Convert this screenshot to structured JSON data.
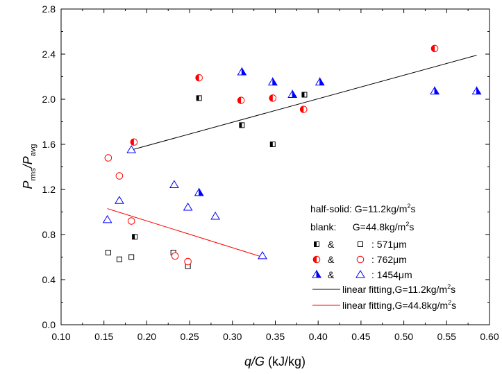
{
  "chart_data": {
    "type": "scatter",
    "xlim": [
      0.1,
      0.6
    ],
    "ylim": [
      0.0,
      2.8
    ],
    "x_ticks": [
      0.1,
      0.15,
      0.2,
      0.25,
      0.3,
      0.35,
      0.4,
      0.45,
      0.5,
      0.55,
      0.6
    ],
    "x_tick_labels": [
      "0.10",
      "0.15",
      "0.20",
      "0.25",
      "0.30",
      "0.35",
      "0.40",
      "0.45",
      "0.50",
      "0.55",
      "0.60"
    ],
    "y_ticks": [
      0.0,
      0.4,
      0.8,
      1.2,
      1.6,
      2.0,
      2.4,
      2.8
    ],
    "y_tick_labels": [
      "0.0",
      "0.4",
      "0.8",
      "1.2",
      "1.6",
      "2.0",
      "2.4",
      "2.8"
    ],
    "xlabel": {
      "main": "q/G",
      "unit": " (kJ/kg)"
    },
    "ylabel": {
      "p1": "P",
      "s1": "rms",
      "slash": "/P",
      "s2": "avg"
    },
    "grid": false,
    "legend_placement": "bottom-right",
    "legend": {
      "line1": {
        "text": "half-solid: G=11.2kg/m",
        "sup": "2",
        "tail": "s"
      },
      "line2": {
        "text": "blank:      G=44.8kg/m",
        "sup": "2",
        "tail": "s"
      },
      "entries": [
        {
          "amp": "&",
          "label": ": 571μm",
          "marker": "square",
          "color": "#000000"
        },
        {
          "amp": "&",
          "label": ": 762μm",
          "marker": "circle",
          "color": "#ff0000"
        },
        {
          "amp": "&",
          "label": ": 1454μm",
          "marker": "triangle",
          "color": "#0000ff"
        }
      ],
      "lines": [
        {
          "label": "linear fitting,G=11.2kg/m",
          "sup": "2",
          "tail": "s",
          "color": "#000000"
        },
        {
          "label": "linear fitting,G=44.8kg/m",
          "sup": "2",
          "tail": "s",
          "color": "#ff0000"
        }
      ]
    },
    "series": [
      {
        "marker": "square",
        "fill": "half",
        "color": "#000000",
        "points": [
          [
            0.186,
            0.78
          ],
          [
            0.261,
            2.01
          ],
          [
            0.311,
            1.77
          ],
          [
            0.347,
            1.6
          ],
          [
            0.384,
            2.04
          ]
        ]
      },
      {
        "marker": "square",
        "fill": "open",
        "color": "#000000",
        "points": [
          [
            0.155,
            0.64
          ],
          [
            0.168,
            0.58
          ],
          [
            0.182,
            0.6
          ],
          [
            0.231,
            0.64
          ],
          [
            0.248,
            0.52
          ]
        ]
      },
      {
        "marker": "circle",
        "fill": "half",
        "color": "#ff0000",
        "points": [
          [
            0.185,
            1.62
          ],
          [
            0.261,
            2.19
          ],
          [
            0.31,
            1.99
          ],
          [
            0.347,
            2.01
          ],
          [
            0.383,
            1.91
          ],
          [
            0.536,
            2.45
          ]
        ]
      },
      {
        "marker": "circle",
        "fill": "open",
        "color": "#ff0000",
        "points": [
          [
            0.155,
            1.48
          ],
          [
            0.168,
            1.32
          ],
          [
            0.182,
            0.92
          ],
          [
            0.233,
            0.61
          ],
          [
            0.248,
            0.56
          ]
        ]
      },
      {
        "marker": "triangle",
        "fill": "open",
        "color": "#0000ff",
        "points": [
          [
            0.154,
            0.93
          ],
          [
            0.168,
            1.1
          ],
          [
            0.182,
            1.55
          ],
          [
            0.232,
            1.24
          ],
          [
            0.248,
            1.04
          ],
          [
            0.28,
            0.96
          ],
          [
            0.335,
            0.61
          ]
        ]
      },
      {
        "marker": "triangle",
        "fill": "half",
        "color": "#0000ff",
        "points": [
          [
            0.261,
            1.17
          ],
          [
            0.311,
            2.24
          ],
          [
            0.347,
            2.15
          ],
          [
            0.37,
            2.04
          ],
          [
            0.402,
            2.15
          ],
          [
            0.536,
            2.07
          ],
          [
            0.585,
            2.07
          ]
        ]
      }
    ],
    "fit_lines": [
      {
        "color": "#000000",
        "x": [
          0.182,
          0.585
        ],
        "y": [
          1.55,
          2.39
        ]
      },
      {
        "color": "#ff0000",
        "x": [
          0.154,
          0.335
        ],
        "y": [
          1.03,
          0.6
        ]
      }
    ]
  }
}
